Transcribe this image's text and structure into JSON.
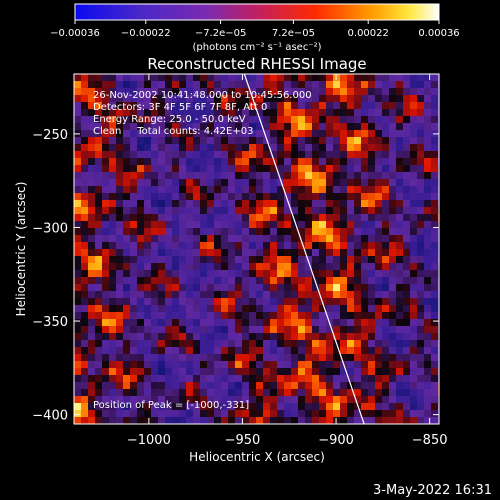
{
  "chart_data": {
    "type": "heatmap",
    "title": "Reconstructed RHESSI Image",
    "xlabel": "Heliocentric X (arcsec)",
    "ylabel": "Heliocentric Y (arcsec)",
    "xlim": [
      -1040,
      -845
    ],
    "ylim": [
      -405,
      -218
    ],
    "x_ticks": [
      -1000,
      -950,
      -900,
      -850
    ],
    "x_tick_labels": [
      "−1000",
      "−950",
      "−900",
      "−850"
    ],
    "y_ticks": [
      -250,
      -300,
      -350,
      -400
    ],
    "y_tick_labels": [
      "−250",
      "−300",
      "−350",
      "−400"
    ],
    "colorbar": {
      "min": -0.00036,
      "max": 0.00036,
      "tick_values": [
        -0.00036,
        -0.00022,
        -7.2e-05,
        7.2e-05,
        0.00022,
        0.00036
      ],
      "tick_labels": [
        "−0.00036",
        "−0.00022",
        "−7.2e−05",
        "7.2e−05",
        "0.00022",
        "0.00036"
      ],
      "unit_label": "(photons cm⁻² s⁻¹ asec⁻²)"
    },
    "annotations": [
      "26-Nov-2002 10:41:48.000 to 10:45:56.000",
      "Detectors: 3F 4F 5F 6F 7F 8F, Att 0",
      "Energy Range: 25.0 - 50.0 keV",
      "Clean     Total counts: 4.42E+03"
    ],
    "peak_label": "Position of Peak = [-1000,-331]",
    "limb_line": [
      {
        "x": -949,
        "y": -218
      },
      {
        "x": -885,
        "y": -405
      }
    ]
  },
  "footer": {
    "timestamp": "3-May-2022 16:31"
  }
}
